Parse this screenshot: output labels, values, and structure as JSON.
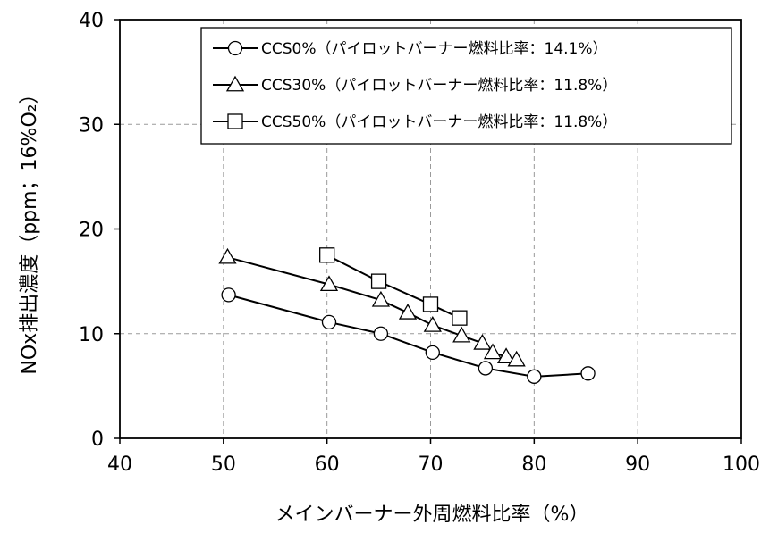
{
  "chart_data": {
    "type": "line",
    "xlabel": "メインバーナー外周燃料比率（%）",
    "ylabel": "NOx排出濃度（ppm；16%O₂）",
    "xlim": [
      40,
      100
    ],
    "ylim": [
      0,
      40
    ],
    "xticks": [
      "40",
      "50",
      "60",
      "70",
      "80",
      "90",
      "100"
    ],
    "yticks": [
      "0",
      "10",
      "20",
      "30",
      "40"
    ],
    "grid": true,
    "legend_position": "top-right",
    "series": [
      {
        "name": "CCS0%（パイロットバーナー燃料比率：14.1%）",
        "marker": "circle",
        "x": [
          50.5,
          60.2,
          65.2,
          70.2,
          75.3,
          80.0,
          85.2
        ],
        "y": [
          13.7,
          11.1,
          10.0,
          8.2,
          6.7,
          5.9,
          6.2
        ]
      },
      {
        "name": "CCS30%（パイロットバーナー燃料比率：11.8%）",
        "marker": "triangle",
        "x": [
          50.4,
          60.2,
          65.2,
          67.8,
          70.2,
          73.0,
          75.0,
          76.0,
          77.3,
          78.3
        ],
        "y": [
          17.3,
          14.7,
          13.2,
          12.0,
          10.8,
          9.8,
          9.1,
          8.2,
          7.8,
          7.5
        ]
      },
      {
        "name": "CCS50%（パイロットバーナー燃料比率：11.8%）",
        "marker": "square",
        "x": [
          60.0,
          65.0,
          70.0,
          72.8
        ],
        "y": [
          17.5,
          15.0,
          12.8,
          11.5
        ]
      }
    ]
  }
}
